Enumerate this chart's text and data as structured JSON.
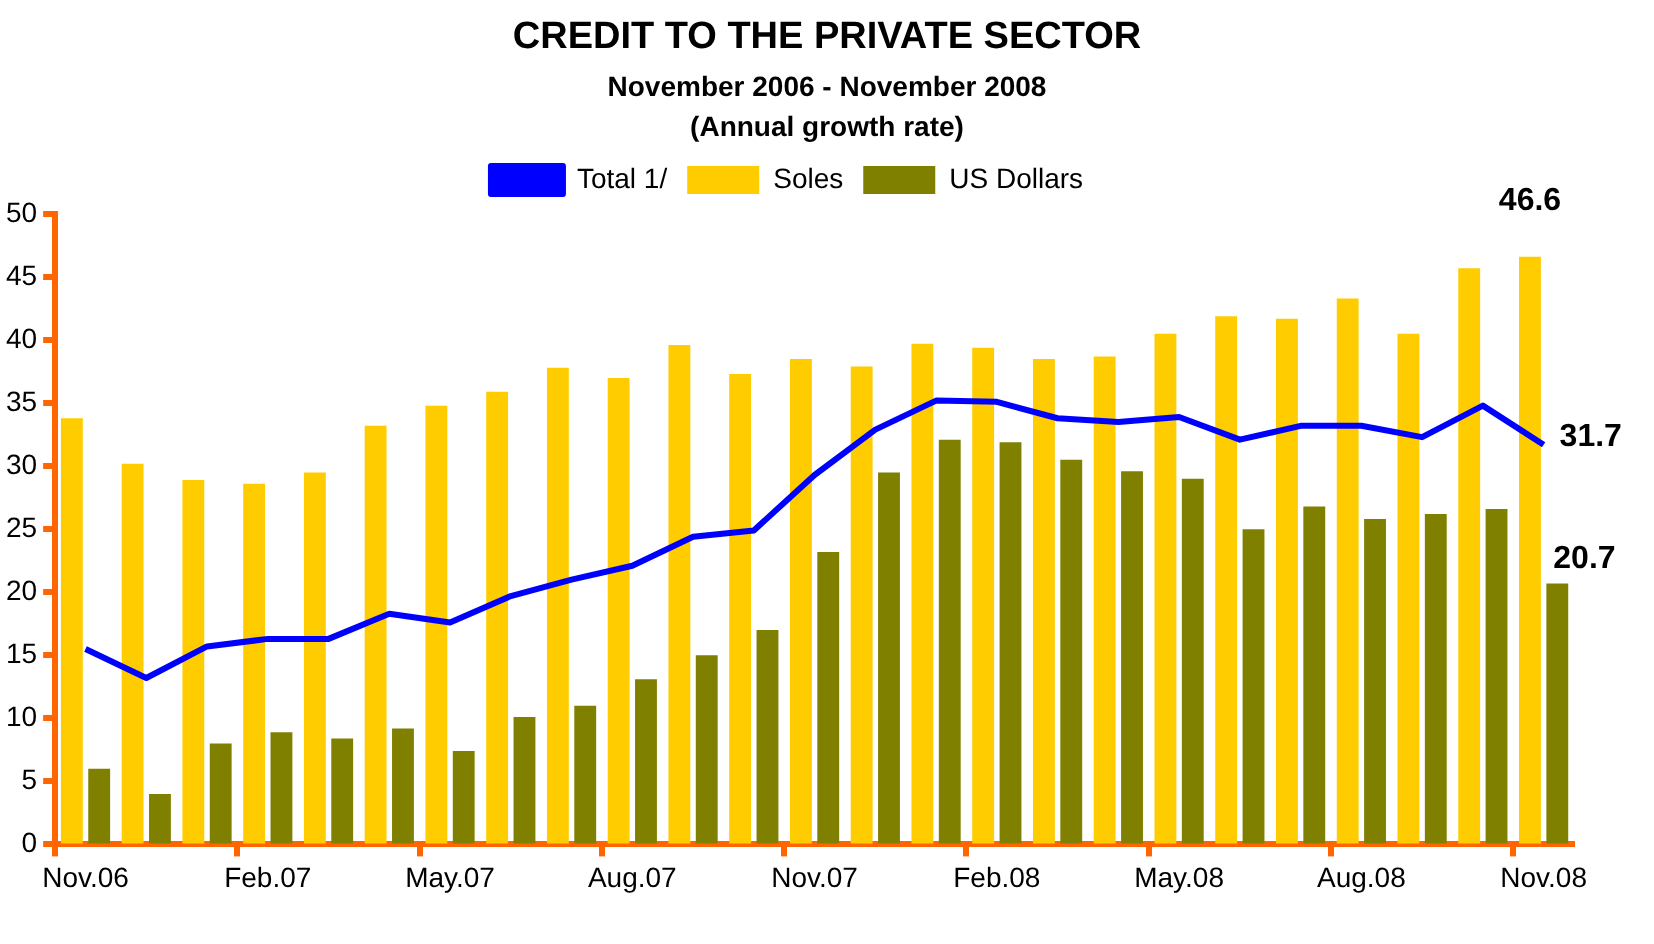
{
  "chart_data": {
    "type": "bar",
    "title": "CREDIT TO THE PRIVATE SECTOR",
    "subtitle": "November 2006 - November 2008\n(Annual growth rate)",
    "categories": [
      "Nov.06",
      null,
      null,
      "Feb.07",
      null,
      null,
      "May.07",
      null,
      null,
      "Aug.07",
      null,
      null,
      "Nov.07",
      null,
      null,
      "Feb.08",
      null,
      null,
      "May.08",
      null,
      null,
      "Aug.08",
      null,
      null,
      "Nov.08"
    ],
    "series": [
      {
        "name": "Soles",
        "color": "#ffcc00",
        "values": [
          33.8,
          30.2,
          28.9,
          28.6,
          29.5,
          33.2,
          34.8,
          35.9,
          37.8,
          37.0,
          39.6,
          37.3,
          38.5,
          37.9,
          39.7,
          39.4,
          38.5,
          38.7,
          40.5,
          41.9,
          41.7,
          43.3,
          40.5,
          45.7,
          46.6
        ],
        "value_labels": [
          null,
          null,
          null,
          null,
          null,
          null,
          null,
          null,
          null,
          null,
          null,
          null,
          null,
          null,
          null,
          null,
          null,
          null,
          null,
          null,
          null,
          null,
          null,
          null,
          "46.6"
        ]
      },
      {
        "name": "US Dollars",
        "color": "#808000",
        "values": [
          6.0,
          4.0,
          8.0,
          8.9,
          8.4,
          9.2,
          7.4,
          10.1,
          11.0,
          13.1,
          15.0,
          17.0,
          23.2,
          29.5,
          32.1,
          31.9,
          30.5,
          29.6,
          29.0,
          25.0,
          26.8,
          25.8,
          26.2,
          26.6,
          20.7
        ],
        "value_labels": [
          null,
          null,
          null,
          null,
          null,
          null,
          null,
          null,
          null,
          null,
          null,
          null,
          null,
          null,
          null,
          null,
          null,
          null,
          null,
          null,
          null,
          null,
          null,
          null,
          "20.7"
        ]
      },
      {
        "name": "Total 1/",
        "type": "line",
        "color": "#0000ff",
        "values": [
          15.5,
          13.2,
          15.7,
          16.3,
          16.3,
          18.3,
          17.6,
          19.7,
          21.0,
          22.1,
          24.4,
          24.9,
          29.3,
          32.9,
          35.2,
          35.1,
          33.8,
          33.5,
          33.9,
          32.1,
          33.2,
          33.2,
          32.3,
          34.8,
          31.7
        ],
        "value_labels": [
          null,
          null,
          null,
          null,
          null,
          null,
          null,
          null,
          null,
          null,
          null,
          null,
          null,
          null,
          null,
          null,
          null,
          null,
          null,
          null,
          null,
          null,
          null,
          null,
          "31.7"
        ]
      }
    ],
    "ylim": [
      0,
      50
    ],
    "yticks": [
      0,
      5,
      10,
      15,
      20,
      25,
      30,
      35,
      40,
      45,
      50
    ],
    "grid": false,
    "legend": "top",
    "marker": "none"
  }
}
